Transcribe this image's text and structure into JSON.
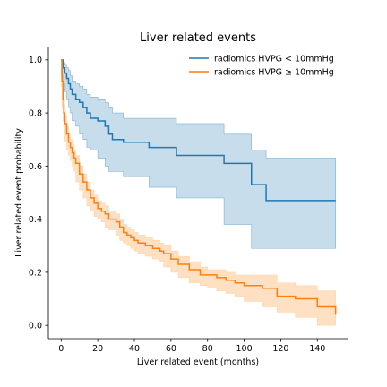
{
  "chart_data": {
    "type": "line",
    "title": "Liver related events",
    "xlabel": "Liver related event (months)",
    "ylabel": "Liver related event probability",
    "xlim": [
      -7,
      157
    ],
    "ylim": [
      -0.05,
      1.05
    ],
    "xticks": [
      0,
      20,
      40,
      60,
      80,
      100,
      120,
      140
    ],
    "yticks": [
      0.0,
      0.2,
      0.4,
      0.6,
      0.8,
      1.0
    ],
    "xtick_labels": [
      "0",
      "20",
      "40",
      "60",
      "80",
      "100",
      "120",
      "140"
    ],
    "ytick_labels": [
      "0.0",
      "0.2",
      "0.4",
      "0.6",
      "0.8",
      "1.0"
    ],
    "grid": false,
    "legend_position": "top-right",
    "series": [
      {
        "name": "radiomics HVPG < 10mmHg",
        "color": "#1f77b4",
        "band_color": "#1f77b4",
        "x": [
          0,
          1,
          2,
          3,
          4,
          5,
          6,
          8,
          10,
          12,
          14,
          16,
          20,
          24,
          26,
          28,
          34,
          48,
          63,
          89,
          104,
          112,
          150
        ],
        "y": [
          1.0,
          0.97,
          0.95,
          0.93,
          0.91,
          0.89,
          0.87,
          0.85,
          0.84,
          0.82,
          0.8,
          0.78,
          0.77,
          0.75,
          0.72,
          0.7,
          0.69,
          0.67,
          0.64,
          0.61,
          0.53,
          0.47,
          0.47
        ],
        "lower": [
          1.0,
          0.94,
          0.91,
          0.88,
          0.85,
          0.82,
          0.8,
          0.77,
          0.75,
          0.72,
          0.7,
          0.67,
          0.66,
          0.63,
          0.6,
          0.58,
          0.58,
          0.56,
          0.52,
          0.48,
          0.38,
          0.29,
          0.29
        ],
        "upper": [
          1.0,
          0.99,
          0.98,
          0.97,
          0.96,
          0.94,
          0.92,
          0.91,
          0.9,
          0.89,
          0.87,
          0.86,
          0.85,
          0.84,
          0.82,
          0.8,
          0.78,
          0.78,
          0.76,
          0.72,
          0.66,
          0.63,
          0.63
        ]
      },
      {
        "name": "radiomics HVPG ≥ 10mmHg",
        "color": "#ff7f0e",
        "band_color": "#ffbb78",
        "x": [
          0,
          0.5,
          1,
          1.5,
          2,
          3,
          4,
          5,
          6,
          7,
          8,
          10,
          12,
          14,
          16,
          18,
          20,
          22,
          24,
          26,
          30,
          32,
          34,
          36,
          38,
          40,
          42,
          46,
          50,
          54,
          56,
          60,
          64,
          70,
          76,
          80,
          85,
          90,
          95,
          100,
          110,
          118,
          128,
          140,
          150
        ],
        "y": [
          1.0,
          0.92,
          0.85,
          0.8,
          0.76,
          0.72,
          0.69,
          0.67,
          0.65,
          0.63,
          0.61,
          0.57,
          0.54,
          0.51,
          0.48,
          0.46,
          0.44,
          0.43,
          0.42,
          0.4,
          0.39,
          0.37,
          0.35,
          0.34,
          0.33,
          0.32,
          0.31,
          0.3,
          0.29,
          0.28,
          0.27,
          0.25,
          0.23,
          0.21,
          0.19,
          0.19,
          0.18,
          0.17,
          0.16,
          0.15,
          0.14,
          0.11,
          0.1,
          0.07,
          0.04
        ],
        "lower": [
          1.0,
          0.9,
          0.82,
          0.77,
          0.73,
          0.69,
          0.66,
          0.64,
          0.62,
          0.6,
          0.58,
          0.54,
          0.51,
          0.48,
          0.45,
          0.43,
          0.41,
          0.4,
          0.39,
          0.37,
          0.36,
          0.34,
          0.32,
          0.31,
          0.3,
          0.29,
          0.28,
          0.27,
          0.26,
          0.25,
          0.24,
          0.22,
          0.2,
          0.18,
          0.16,
          0.15,
          0.14,
          0.13,
          0.12,
          0.11,
          0.09,
          0.07,
          0.05,
          0.03,
          0.0
        ],
        "upper": [
          1.0,
          0.94,
          0.88,
          0.83,
          0.79,
          0.75,
          0.72,
          0.7,
          0.68,
          0.66,
          0.64,
          0.6,
          0.57,
          0.54,
          0.51,
          0.49,
          0.47,
          0.46,
          0.45,
          0.43,
          0.42,
          0.4,
          0.38,
          0.37,
          0.36,
          0.35,
          0.34,
          0.33,
          0.32,
          0.31,
          0.3,
          0.28,
          0.26,
          0.24,
          0.22,
          0.21,
          0.21,
          0.2,
          0.19,
          0.19,
          0.19,
          0.16,
          0.15,
          0.13,
          0.13
        ]
      }
    ]
  }
}
